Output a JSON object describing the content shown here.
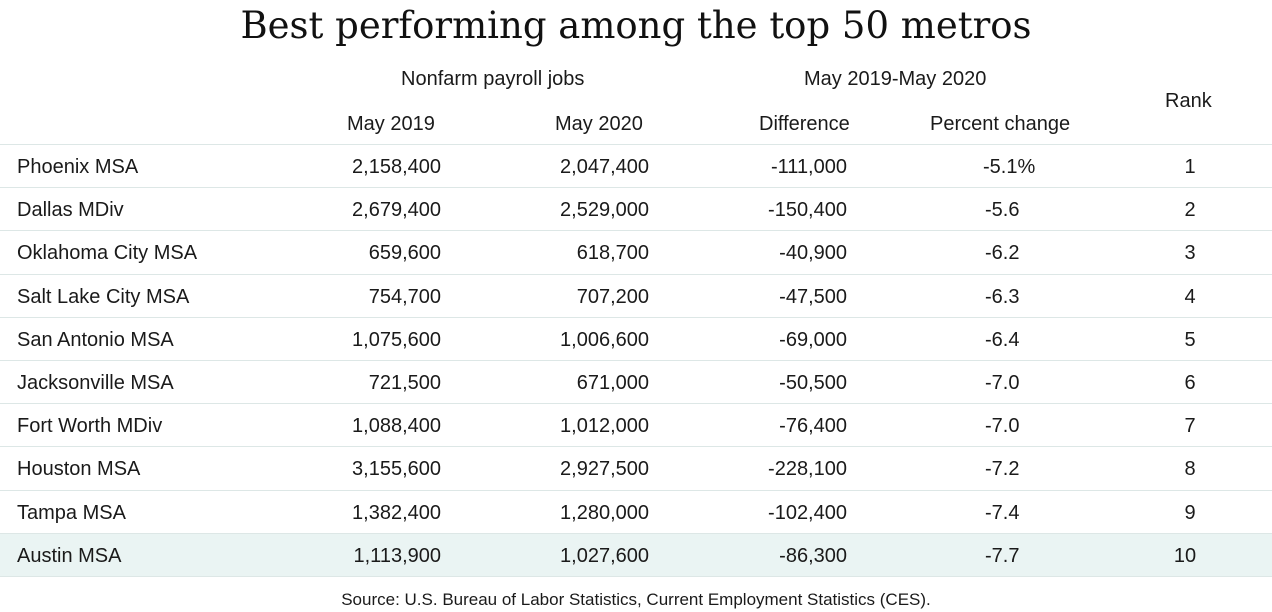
{
  "title": "Best performing among the top 50 metros",
  "headers": {
    "group_jobs": "Nonfarm  payroll jobs",
    "group_change": "May 2019-May 2020",
    "rank": "Rank",
    "may2019": "May 2019",
    "may2020": "May 2020",
    "difference": "Difference",
    "percent_change": "Percent change"
  },
  "rows": [
    {
      "name": "Phoenix MSA",
      "may2019": "2,158,400",
      "may2020": "2,047,400",
      "difference": "-111,000",
      "percent": "-5.1%",
      "rank": "1"
    },
    {
      "name": "Dallas MDiv",
      "may2019": "2,679,400",
      "may2020": "2,529,000",
      "difference": "-150,400",
      "percent": "-5.6",
      "rank": "2"
    },
    {
      "name": "Oklahoma  City MSA",
      "may2019": "659,600",
      "may2020": "618,700",
      "difference": "-40,900",
      "percent": "-6.2",
      "rank": "3"
    },
    {
      "name": "Salt Lake City MSA",
      "may2019": "754,700",
      "may2020": "707,200",
      "difference": "-47,500",
      "percent": "-6.3",
      "rank": "4"
    },
    {
      "name": "San Antonio MSA",
      "may2019": "1,075,600",
      "may2020": "1,006,600",
      "difference": "-69,000",
      "percent": "-6.4",
      "rank": "5"
    },
    {
      "name": "Jacksonville MSA",
      "may2019": "721,500",
      "may2020": "671,000",
      "difference": "-50,500",
      "percent": "-7.0",
      "rank": "6"
    },
    {
      "name": "Fort Worth MDiv",
      "may2019": "1,088,400",
      "may2020": "1,012,000",
      "difference": "-76,400",
      "percent": "-7.0",
      "rank": "7"
    },
    {
      "name": "Houston MSA",
      "may2019": "3,155,600",
      "may2020": "2,927,500",
      "difference": "-228,100",
      "percent": "-7.2",
      "rank": "8"
    },
    {
      "name": "Tampa  MSA",
      "may2019": "1,382,400",
      "may2020": "1,280,000",
      "difference": "-102,400",
      "percent": "-7.4",
      "rank": "9"
    },
    {
      "name": "Austin MSA",
      "may2019": "1,113,900",
      "may2020": "1,027,600",
      "difference": "-86,300",
      "percent": "-7.7",
      "rank": "10"
    }
  ],
  "source": "Source:  U.S. Bureau of Labor Statistics, Current Employment Statistics (CES)."
}
